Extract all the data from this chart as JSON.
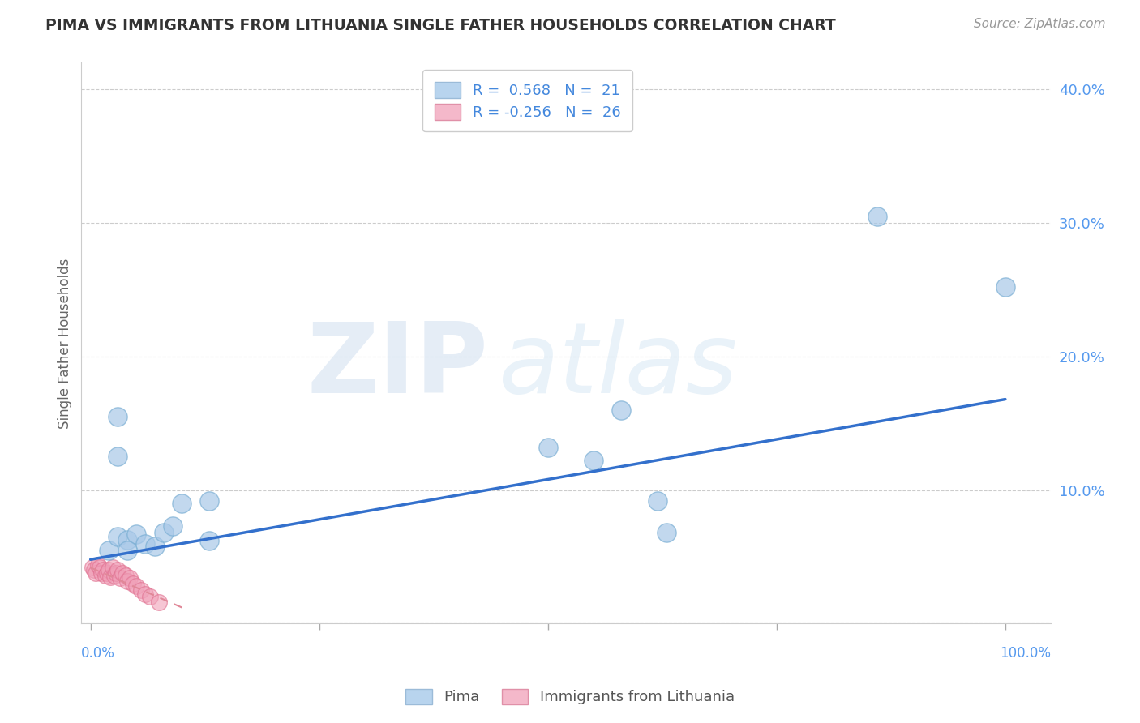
{
  "title": "PIMA VS IMMIGRANTS FROM LITHUANIA SINGLE FATHER HOUSEHOLDS CORRELATION CHART",
  "source": "Source: ZipAtlas.com",
  "ylabel": "Single Father Households",
  "pima_color": "#a8c8e8",
  "pima_edge_color": "#7bafd4",
  "lithuania_color": "#f0a0b8",
  "lithuania_edge_color": "#e07090",
  "pima_line_color": "#3370cc",
  "lithuania_line_color": "#e08898",
  "watermark_zip": "ZIP",
  "watermark_atlas": "atlas",
  "blue_dots": [
    [
      0.02,
      0.055
    ],
    [
      0.03,
      0.065
    ],
    [
      0.04,
      0.063
    ],
    [
      0.05,
      0.067
    ],
    [
      0.06,
      0.06
    ],
    [
      0.07,
      0.058
    ],
    [
      0.04,
      0.055
    ],
    [
      0.03,
      0.125
    ],
    [
      0.1,
      0.09
    ],
    [
      0.03,
      0.155
    ],
    [
      0.08,
      0.068
    ],
    [
      0.09,
      0.073
    ],
    [
      0.13,
      0.062
    ],
    [
      0.13,
      0.092
    ],
    [
      0.5,
      0.132
    ],
    [
      0.55,
      0.122
    ],
    [
      0.58,
      0.16
    ],
    [
      0.62,
      0.092
    ],
    [
      0.63,
      0.068
    ],
    [
      0.86,
      0.305
    ],
    [
      1.0,
      0.252
    ]
  ],
  "pink_dots": [
    [
      0.002,
      0.042
    ],
    [
      0.004,
      0.04
    ],
    [
      0.006,
      0.038
    ],
    [
      0.008,
      0.044
    ],
    [
      0.01,
      0.042
    ],
    [
      0.012,
      0.038
    ],
    [
      0.014,
      0.04
    ],
    [
      0.016,
      0.036
    ],
    [
      0.018,
      0.038
    ],
    [
      0.02,
      0.04
    ],
    [
      0.022,
      0.035
    ],
    [
      0.024,
      0.042
    ],
    [
      0.026,
      0.036
    ],
    [
      0.028,
      0.038
    ],
    [
      0.03,
      0.04
    ],
    [
      0.032,
      0.034
    ],
    [
      0.035,
      0.038
    ],
    [
      0.038,
      0.036
    ],
    [
      0.04,
      0.032
    ],
    [
      0.043,
      0.034
    ],
    [
      0.046,
      0.03
    ],
    [
      0.05,
      0.028
    ],
    [
      0.055,
      0.025
    ],
    [
      0.06,
      0.022
    ],
    [
      0.065,
      0.02
    ],
    [
      0.075,
      0.016
    ]
  ],
  "pima_line": {
    "x0": 0.0,
    "x1": 1.0,
    "y0": 0.048,
    "y1": 0.168
  },
  "lithuania_line": {
    "x0": 0.0,
    "x1": 0.1,
    "y0": 0.042,
    "y1": 0.012
  },
  "ylim": [
    0.0,
    0.42
  ],
  "xlim": [
    -0.01,
    1.05
  ],
  "yticks": [
    0.0,
    0.1,
    0.2,
    0.3,
    0.4
  ],
  "ytick_labels": [
    "",
    "10.0%",
    "20.0%",
    "30.0%",
    "40.0%"
  ],
  "xtick_positions": [
    0.0,
    0.25,
    0.5,
    0.75,
    1.0
  ],
  "background_color": "#ffffff",
  "title_color": "#333333",
  "source_color": "#999999",
  "axis_label_color": "#666666",
  "tick_color": "#5599ee",
  "grid_color": "#cccccc",
  "legend_text_color": "#4488dd"
}
